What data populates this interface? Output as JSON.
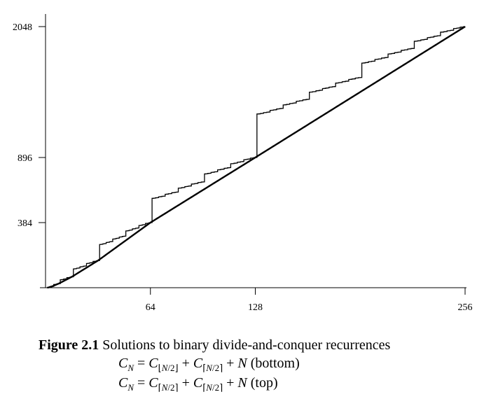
{
  "chart_data": {
    "type": "line",
    "x_ticks": [
      64,
      128,
      256
    ],
    "y_ticks": [
      384,
      896,
      2048
    ],
    "xlim": [
      0,
      256
    ],
    "ylim": [
      0,
      2048
    ],
    "grid": false,
    "series": [
      {
        "recurrence": "top",
        "x": [],
        "y": []
      },
      {
        "recurrence": "bottom",
        "x": [],
        "y": []
      }
    ],
    "colors": {
      "line": "#000000",
      "axis": "#000000"
    }
  },
  "caption": {
    "label": "Figure 2.1",
    "text": "Solutions to binary divide-and-conquer recurrences",
    "formula_bottom": "C_N = C_⌊N/2⌋ + C_⌈N/2⌉ + N (bottom)",
    "formula_top": "C_N = C_⌈N/2⌉ + C_⌈N/2⌉ + N (top)"
  }
}
